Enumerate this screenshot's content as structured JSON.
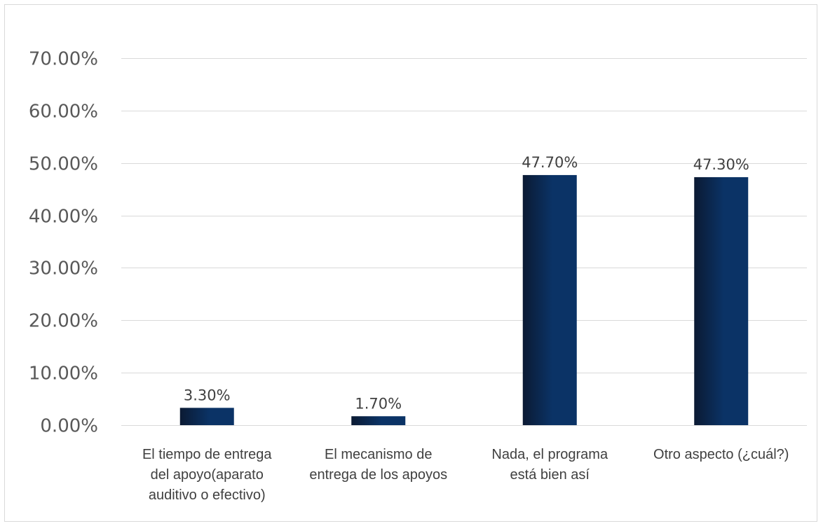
{
  "chart_data": {
    "type": "bar",
    "title": "",
    "xlabel": "",
    "ylabel": "",
    "categories": [
      [
        "El tiempo de entrega",
        "del apoyo(aparato",
        "auditivo o efectivo)"
      ],
      [
        "El mecanismo de",
        "entrega de los apoyos"
      ],
      [
        "Nada, el programa",
        "está bien así"
      ],
      [
        "Otro aspecto (¿cuál?)"
      ]
    ],
    "values": [
      3.3,
      1.7,
      47.7,
      47.3
    ],
    "data_labels": [
      "3.30%",
      "1.70%",
      "47.70%",
      "47.30%"
    ],
    "ylim": [
      0,
      70
    ],
    "yticks": [
      "0.00%",
      "10.00%",
      "20.00%",
      "30.00%",
      "40.00%",
      "50.00%",
      "60.00%",
      "70.00%"
    ],
    "grid": true,
    "legend": "none",
    "colors": {
      "bar_dark": "#0b1a33",
      "bar_light": "#0b3366",
      "grid": "#d9d9d9"
    }
  }
}
